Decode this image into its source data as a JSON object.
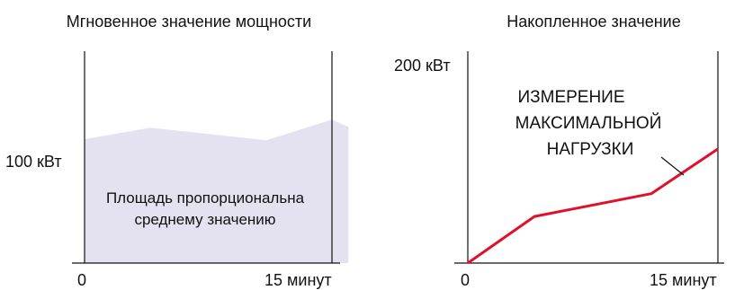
{
  "left_chart": {
    "title": "Мгновенное значение мощности",
    "y_label": "100 кВт",
    "x_start": "0",
    "x_end": "15 минут",
    "area_label_line1": "Площадь пропорциональна",
    "area_label_line2": "среднему значению",
    "fill_color": "#e4e2f0"
  },
  "right_chart": {
    "title": "Накопленное значение",
    "y_label": "200 кВт",
    "x_start": "0",
    "x_end": "15 минут",
    "annotation_line1": "ИЗМЕРЕНИЕ",
    "annotation_line2": "МАКСИМАЛЬНОЙ",
    "annotation_line3": "НАГРУЗКИ",
    "line_color": "#e0102a"
  },
  "chart_data": [
    {
      "type": "area",
      "x": [
        0,
        4,
        11,
        15,
        16
      ],
      "y": [
        120,
        131,
        119,
        139,
        132
      ]
    },
    {
      "type": "line",
      "x": [
        0,
        4,
        11,
        15,
        16
      ],
      "y": [
        0,
        47,
        70,
        115,
        115
      ]
    }
  ]
}
